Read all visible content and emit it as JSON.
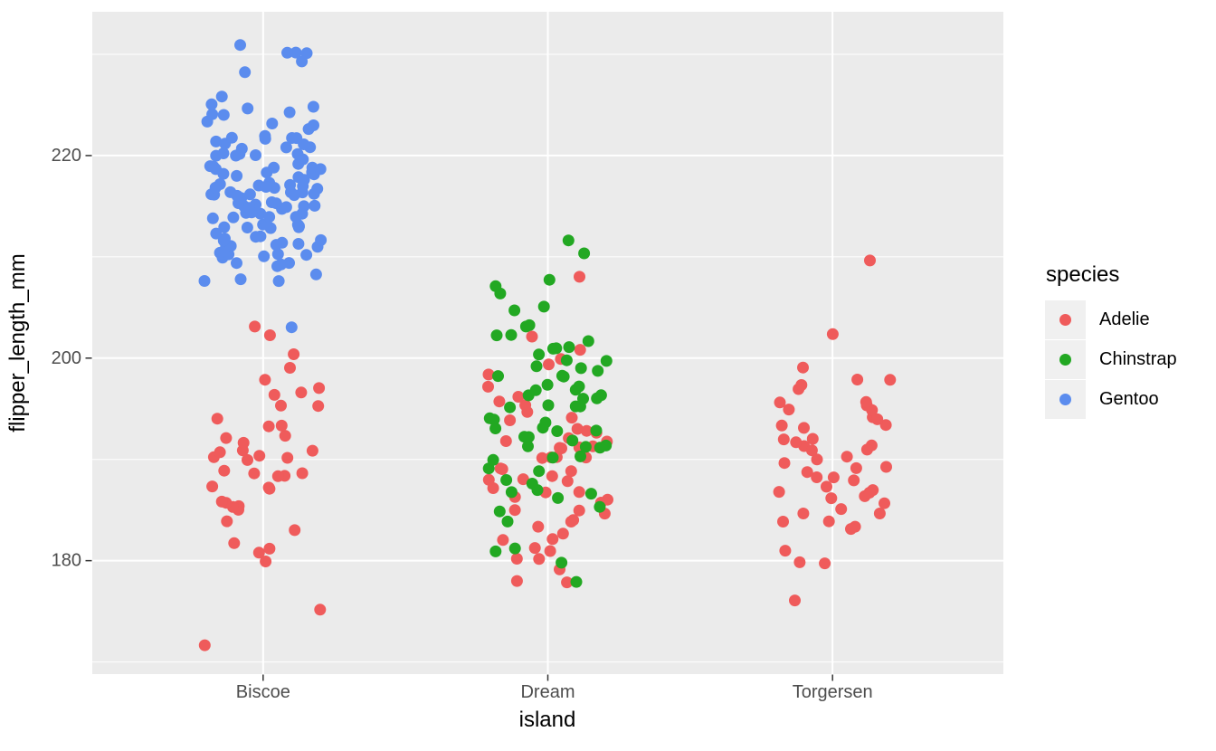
{
  "chart_data": {
    "type": "scatter",
    "subtype": "jitter",
    "xlabel": "island",
    "ylabel": "flipper_length_mm",
    "x_categories": [
      "Biscoe",
      "Dream",
      "Torgersen"
    ],
    "y_ticks": [
      180,
      200,
      220
    ],
    "y_minor_ticks": [
      170,
      190,
      210,
      230
    ],
    "ylim": [
      168.8,
      234.2
    ],
    "grid": "on",
    "panel_background": "#EBEBEB",
    "grid_color": "#FFFFFF",
    "tick_color": "#333333",
    "tick_label_color": "#4D4D4D",
    "jitter_width": 0.21,
    "jitter_height": 0.4,
    "legend": {
      "title": "species",
      "position": "right",
      "entries": [
        {
          "label": "Adelie",
          "color": "#EF5B5B"
        },
        {
          "label": "Chinstrap",
          "color": "#22A822"
        },
        {
          "label": "Gentoo",
          "color": "#5B8CEE"
        }
      ]
    },
    "series": [
      {
        "island": "Biscoe",
        "species": "Adelie",
        "values": [
          172,
          175,
          180,
          181,
          181,
          182,
          183,
          184,
          185,
          185,
          185,
          186,
          186,
          187,
          187,
          187,
          188,
          188,
          189,
          189,
          189,
          190,
          190,
          190,
          190,
          191,
          191,
          191,
          192,
          192,
          192,
          193,
          193,
          194,
          195,
          195,
          196,
          197,
          197,
          198,
          199,
          200,
          202,
          203
        ]
      },
      {
        "island": "Biscoe",
        "species": "Gentoo",
        "values": [
          203,
          208,
          208,
          208,
          208,
          209,
          209,
          209,
          209,
          210,
          210,
          210,
          210,
          210,
          210,
          211,
          211,
          211,
          211,
          211,
          211,
          212,
          212,
          212,
          212,
          212,
          212,
          212,
          213,
          213,
          213,
          213,
          213,
          213,
          213,
          213,
          214,
          214,
          214,
          214,
          214,
          214,
          214,
          214,
          215,
          215,
          215,
          215,
          215,
          215,
          215,
          215,
          215,
          215,
          216,
          216,
          216,
          216,
          216,
          216,
          216,
          216,
          216,
          216,
          217,
          217,
          217,
          217,
          217,
          217,
          217,
          217,
          217,
          218,
          218,
          218,
          218,
          218,
          218,
          218,
          218,
          219,
          219,
          219,
          219,
          219,
          219,
          219,
          220,
          220,
          220,
          220,
          220,
          220,
          220,
          221,
          221,
          221,
          221,
          221,
          221,
          222,
          222,
          222,
          222,
          222,
          223,
          223,
          223,
          223,
          224,
          224,
          224,
          225,
          225,
          225,
          226,
          228,
          229,
          230,
          230,
          230,
          231
        ]
      },
      {
        "island": "Dream",
        "species": "Adelie",
        "values": [
          178,
          178,
          179,
          180,
          180,
          181,
          181,
          182,
          182,
          183,
          183,
          184,
          184,
          185,
          185,
          185,
          186,
          186,
          186,
          187,
          187,
          187,
          188,
          188,
          188,
          188,
          189,
          189,
          189,
          190,
          190,
          190,
          190,
          191,
          191,
          191,
          191,
          192,
          192,
          192,
          193,
          193,
          193,
          194,
          194,
          195,
          195,
          196,
          196,
          197,
          198,
          199,
          200,
          201,
          202,
          208
        ]
      },
      {
        "island": "Dream",
        "species": "Chinstrap",
        "values": [
          178,
          180,
          181,
          181,
          184,
          185,
          185,
          186,
          187,
          187,
          187,
          188,
          188,
          189,
          189,
          190,
          190,
          190,
          191,
          191,
          191,
          191,
          192,
          192,
          192,
          193,
          193,
          193,
          193,
          194,
          194,
          194,
          195,
          195,
          195,
          195,
          196,
          196,
          196,
          196,
          197,
          197,
          197,
          197,
          198,
          198,
          198,
          199,
          199,
          199,
          200,
          200,
          200,
          201,
          201,
          201,
          202,
          202,
          202,
          203,
          203,
          205,
          205,
          206,
          207,
          208,
          210,
          212
        ]
      },
      {
        "island": "Torgersen",
        "species": "Adelie",
        "values": [
          176,
          180,
          180,
          181,
          183,
          183,
          184,
          184,
          185,
          185,
          185,
          186,
          186,
          186,
          187,
          187,
          187,
          187,
          188,
          188,
          188,
          189,
          189,
          189,
          190,
          190,
          190,
          191,
          191,
          191,
          191,
          192,
          192,
          192,
          193,
          193,
          193,
          194,
          194,
          195,
          195,
          195,
          196,
          196,
          197,
          197,
          198,
          198,
          199,
          202,
          210
        ]
      }
    ]
  }
}
